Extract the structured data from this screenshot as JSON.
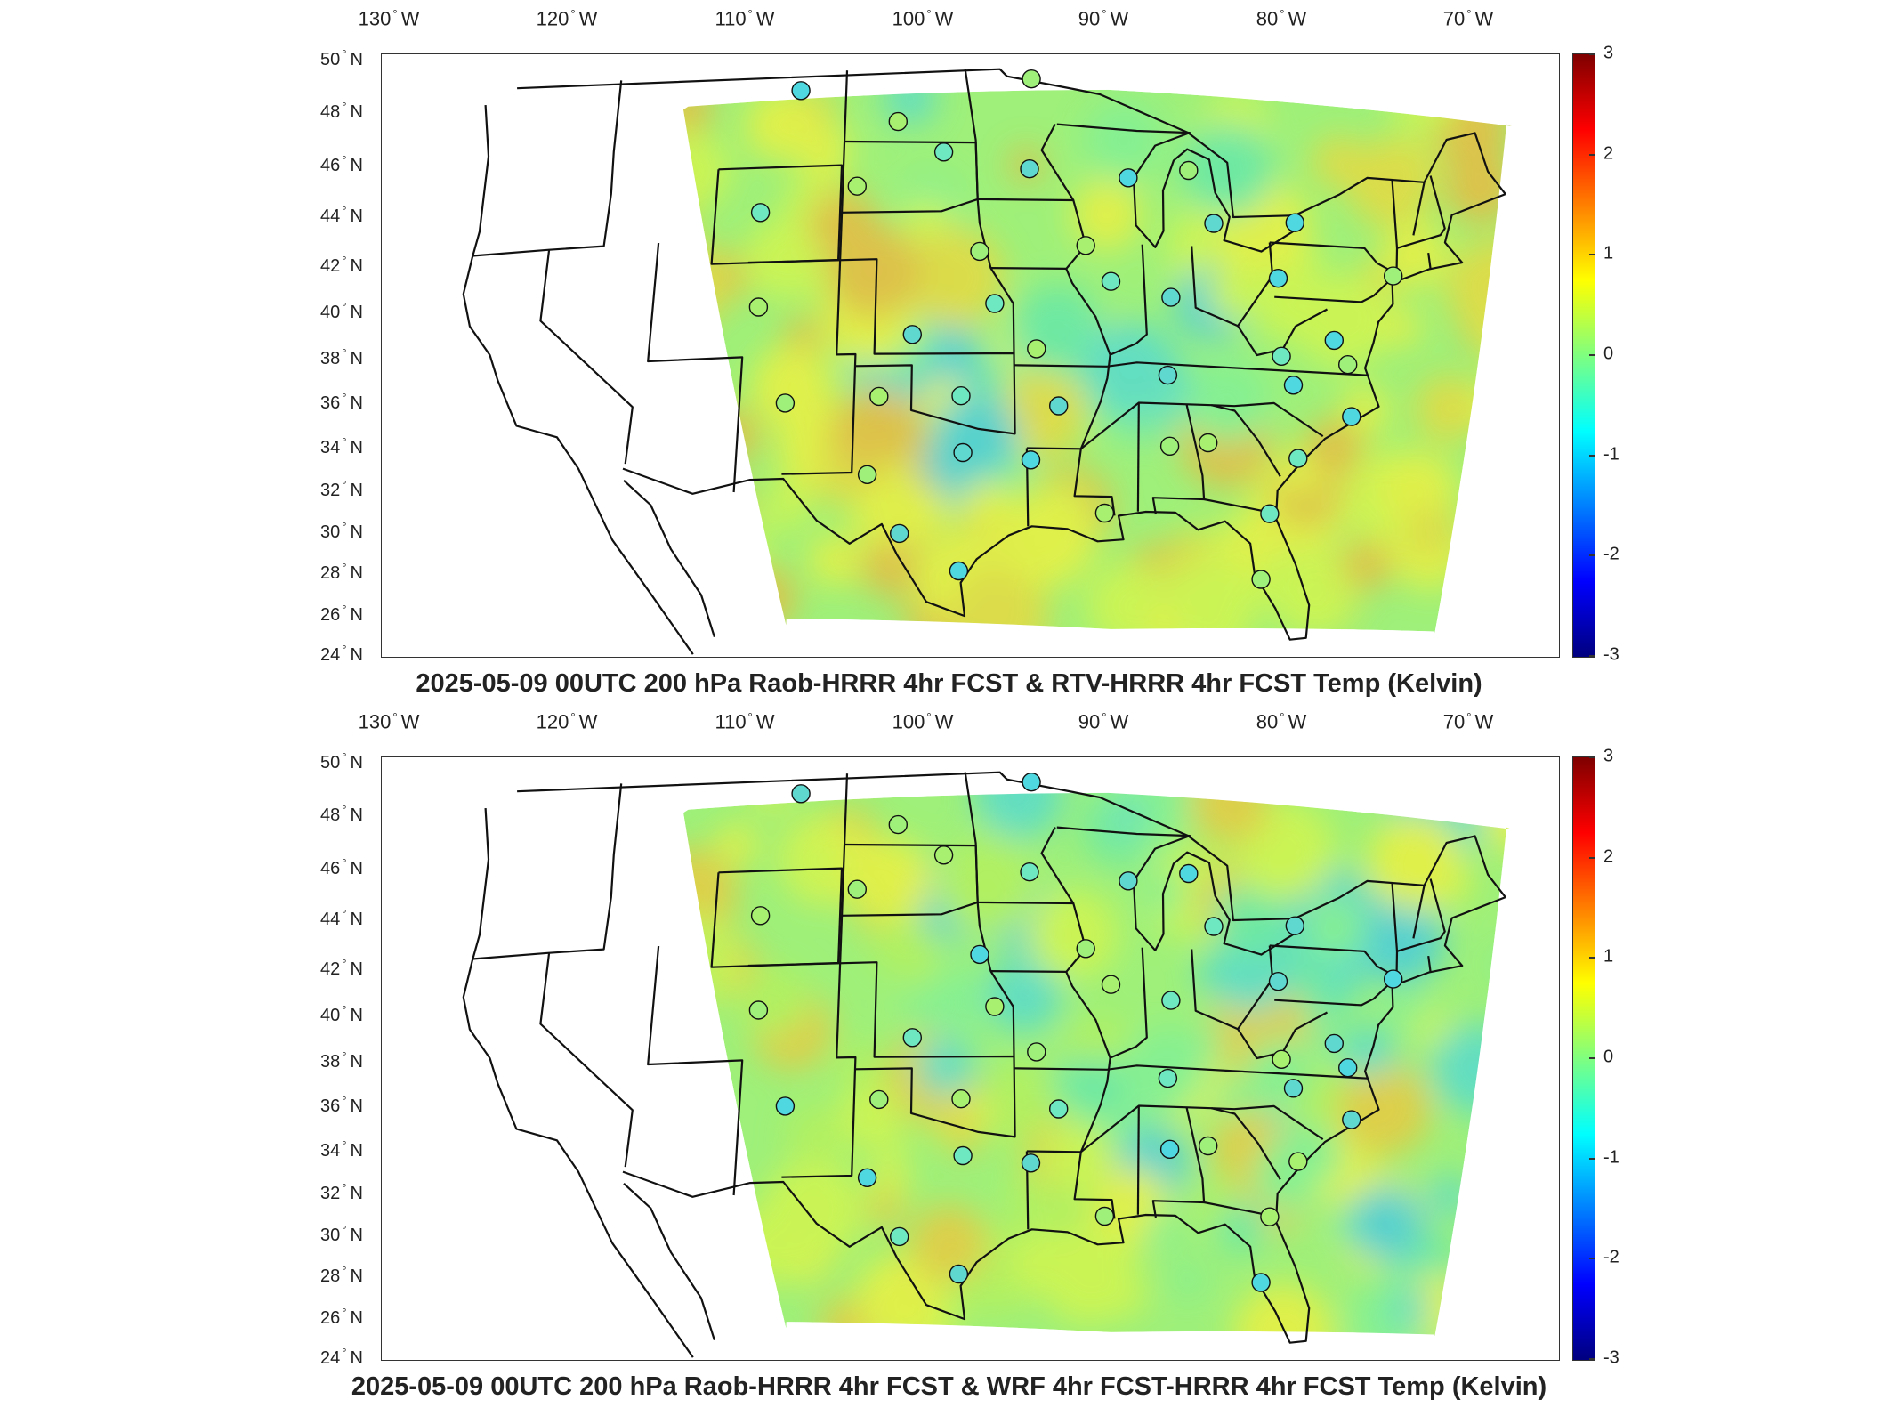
{
  "panels": [
    {
      "id": "top",
      "title": "2025-05-09 00UTC 200 hPa Raob-HRRR 4hr FCST & RTV-HRRR 4hr FCST Temp (Kelvin)"
    },
    {
      "id": "bottom",
      "title": "2025-05-09 00UTC 200 hPa Raob-HRRR 4hr FCST & WRF 4hr FCST-HRRR 4hr FCST Temp (Kelvin)"
    }
  ],
  "lon_ticks": [
    {
      "value": "130",
      "hemi": "W"
    },
    {
      "value": "120",
      "hemi": "W"
    },
    {
      "value": "110",
      "hemi": "W"
    },
    {
      "value": "100",
      "hemi": "W"
    },
    {
      "value": "90",
      "hemi": "W"
    },
    {
      "value": "80",
      "hemi": "W"
    },
    {
      "value": "70",
      "hemi": "W"
    }
  ],
  "lat_ticks": [
    {
      "value": "50",
      "hemi": "N"
    },
    {
      "value": "48",
      "hemi": "N"
    },
    {
      "value": "46",
      "hemi": "N"
    },
    {
      "value": "44",
      "hemi": "N"
    },
    {
      "value": "42",
      "hemi": "N"
    },
    {
      "value": "40",
      "hemi": "N"
    },
    {
      "value": "38",
      "hemi": "N"
    },
    {
      "value": "36",
      "hemi": "N"
    },
    {
      "value": "34",
      "hemi": "N"
    },
    {
      "value": "32",
      "hemi": "N"
    },
    {
      "value": "30",
      "hemi": "N"
    },
    {
      "value": "28",
      "hemi": "N"
    },
    {
      "value": "26",
      "hemi": "N"
    },
    {
      "value": "24",
      "hemi": "N"
    }
  ],
  "colorbar": {
    "min": -3,
    "max": 3,
    "ticks": [
      "3",
      "2",
      "1",
      "0",
      "-1",
      "-2",
      "-3"
    ],
    "colormap": "jet"
  },
  "map": {
    "projection": "lambert-conformal",
    "extent": {
      "lon_min": -130,
      "lon_max": -65,
      "lat_min": 24,
      "lat_max": 50
    },
    "field_background": "#9ef07a"
  },
  "raob_stations": [
    {
      "lon": -106.6,
      "lat": 48.2
    },
    {
      "lon": -93.4,
      "lat": 48.6
    },
    {
      "lon": -101.0,
      "lat": 46.8
    },
    {
      "lon": -98.4,
      "lat": 45.5
    },
    {
      "lon": -93.6,
      "lat": 44.8
    },
    {
      "lon": -88.1,
      "lat": 44.5
    },
    {
      "lon": -84.7,
      "lat": 44.9
    },
    {
      "lon": -103.2,
      "lat": 44.1
    },
    {
      "lon": -108.5,
      "lat": 43.1
    },
    {
      "lon": -83.5,
      "lat": 42.7
    },
    {
      "lon": -79.0,
      "lat": 42.9
    },
    {
      "lon": -96.4,
      "lat": 41.3
    },
    {
      "lon": -90.6,
      "lat": 41.6
    },
    {
      "lon": -89.3,
      "lat": 40.1
    },
    {
      "lon": -86.1,
      "lat": 39.5
    },
    {
      "lon": -80.2,
      "lat": 40.5
    },
    {
      "lon": -73.9,
      "lat": 40.9
    },
    {
      "lon": -108.3,
      "lat": 39.1
    },
    {
      "lon": -95.6,
      "lat": 39.1
    },
    {
      "lon": -100.0,
      "lat": 37.8
    },
    {
      "lon": -77.5,
      "lat": 38.0
    },
    {
      "lon": -76.9,
      "lat": 37.0
    },
    {
      "lon": -93.4,
      "lat": 37.2
    },
    {
      "lon": -80.4,
      "lat": 37.2
    },
    {
      "lon": -86.5,
      "lat": 36.2
    },
    {
      "lon": -79.9,
      "lat": 36.0
    },
    {
      "lon": -106.6,
      "lat": 35.0
    },
    {
      "lon": -101.7,
      "lat": 35.2
    },
    {
      "lon": -97.4,
      "lat": 35.2
    },
    {
      "lon": -92.3,
      "lat": 34.8
    },
    {
      "lon": -77.0,
      "lat": 34.8
    },
    {
      "lon": -86.6,
      "lat": 33.2
    },
    {
      "lon": -84.6,
      "lat": 33.4
    },
    {
      "lon": -80.0,
      "lat": 32.9
    },
    {
      "lon": -97.3,
      "lat": 32.8
    },
    {
      "lon": -93.8,
      "lat": 32.5
    },
    {
      "lon": -102.2,
      "lat": 31.9
    },
    {
      "lon": -90.1,
      "lat": 30.3
    },
    {
      "lon": -81.7,
      "lat": 30.5
    },
    {
      "lon": -100.5,
      "lat": 29.4
    },
    {
      "lon": -97.5,
      "lat": 27.8
    },
    {
      "lon": -82.4,
      "lat": 27.7
    }
  ]
}
